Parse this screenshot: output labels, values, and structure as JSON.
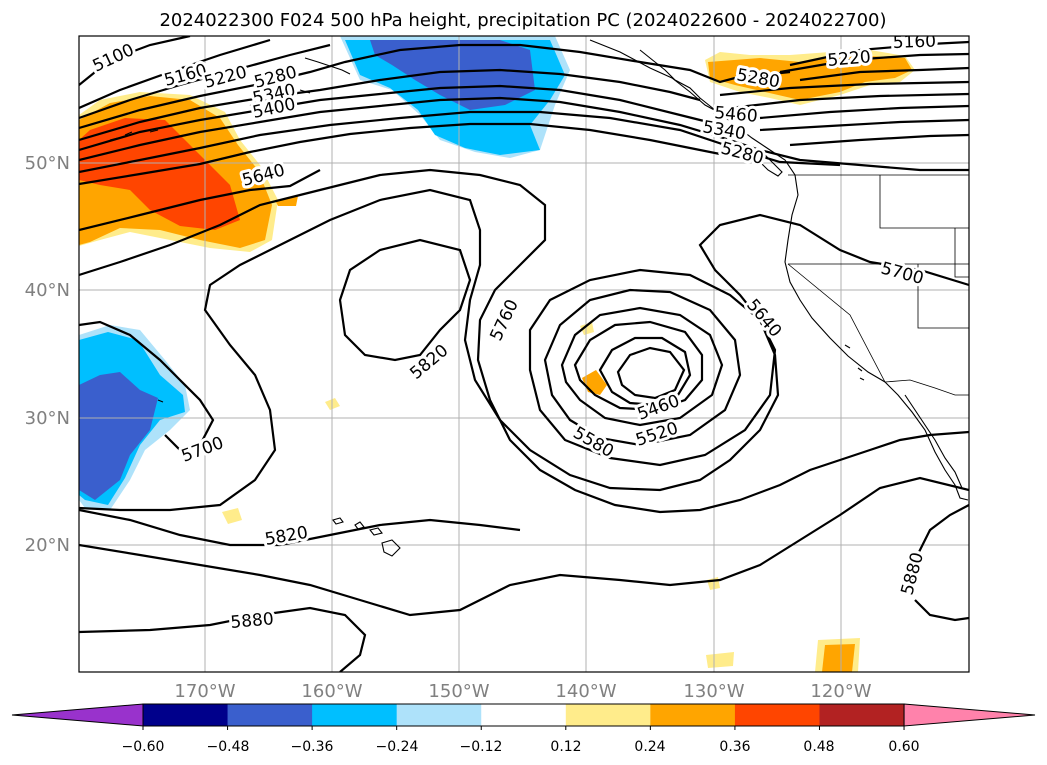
{
  "title": "2024022300 F024 500 hPa height, precipitation PC (2024022600 - 2024022700)",
  "lat_labels": [
    "50°N",
    "40°N",
    "30°N",
    "20°N"
  ],
  "lon_labels": [
    "170°W",
    "160°W",
    "150°W",
    "140°W",
    "130°W",
    "120°W"
  ],
  "colorbar": {
    "ticks": [
      "−0.60",
      "−0.48",
      "−0.36",
      "−0.24",
      "−0.12",
      "0.12",
      "0.24",
      "0.36",
      "0.48",
      "0.60"
    ],
    "colors": [
      "#9932cc",
      "#00008b",
      "#3a5fcd",
      "#00bfff",
      "#aee2fa",
      "#ffffff",
      "#ffec8b",
      "#ffa500",
      "#ff4500",
      "#b22222",
      "#ff82ab"
    ]
  },
  "contour_labels": [
    "5100",
    "5160",
    "5220",
    "5280",
    "5340",
    "5400",
    "5640",
    "5280",
    "5220",
    "5160",
    "5460",
    "5340",
    "5280",
    "5700",
    "5760",
    "5640",
    "5820",
    "5460",
    "5520",
    "5580",
    "5700",
    "5820",
    "5880",
    "5880"
  ]
}
